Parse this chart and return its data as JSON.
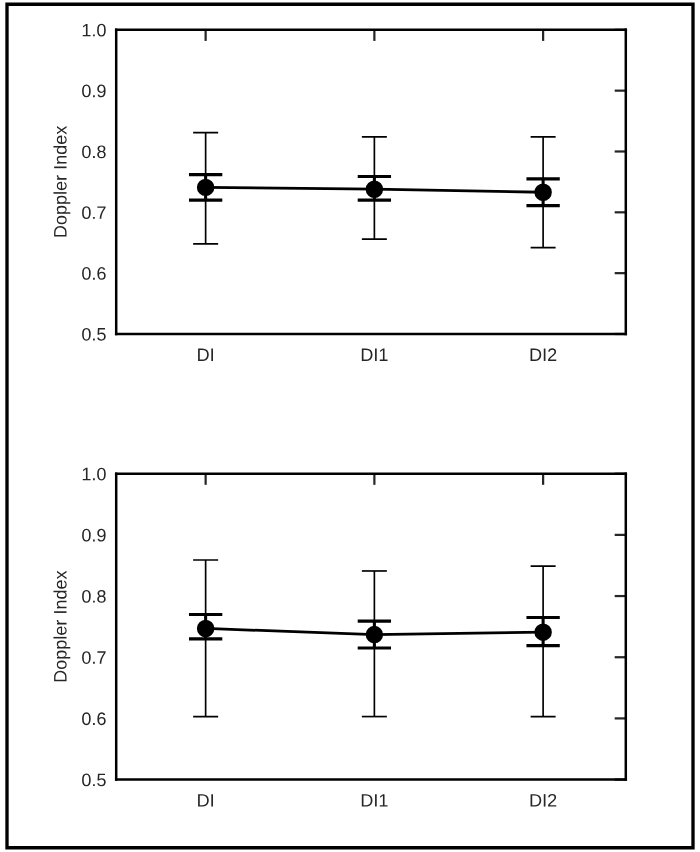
{
  "chart_data": [
    {
      "type": "line",
      "ylabel": "Doppler Index",
      "categories": [
        "DI",
        "DI1",
        "DI2"
      ],
      "ylim": [
        0.5,
        1.0
      ],
      "yticks": [
        {
          "value": 0.5,
          "label": "0.5"
        },
        {
          "value": 0.6,
          "label": "0.6"
        },
        {
          "value": 0.7,
          "label": "0.7"
        },
        {
          "value": 0.8,
          "label": "0.8"
        },
        {
          "value": 0.9,
          "label": "0.9"
        },
        {
          "value": 1.0,
          "label": "1.0"
        }
      ],
      "grid": false,
      "legend": false,
      "series": [
        {
          "type": "scatter",
          "color": "#000000",
          "marker": "circle",
          "values": [
            0.741,
            0.738,
            0.733
          ],
          "errors": [
            [
              0.648,
              0.831
            ],
            [
              0.656,
              0.824
            ],
            [
              0.642,
              0.824
            ]
          ]
        },
        {
          "type": "line",
          "color": "#000000",
          "marker": "none",
          "line_style": "solid",
          "values": [
            0.741,
            0.738,
            0.733
          ],
          "errors": [
            [
              0.72,
              0.762
            ],
            [
              0.72,
              0.759
            ],
            [
              0.711,
              0.755
            ]
          ]
        }
      ]
    },
    {
      "type": "line",
      "ylabel": "Doppler Index",
      "categories": [
        "DI",
        "DI1",
        "DI2"
      ],
      "ylim": [
        0.5,
        1.0
      ],
      "yticks": [
        {
          "value": 0.5,
          "label": "0.5"
        },
        {
          "value": 0.6,
          "label": "0.6"
        },
        {
          "value": 0.7,
          "label": "0.7"
        },
        {
          "value": 0.8,
          "label": "0.8"
        },
        {
          "value": 0.9,
          "label": "0.9"
        },
        {
          "value": 1.0,
          "label": "1.0"
        }
      ],
      "grid": false,
      "legend": false,
      "series": [
        {
          "type": "scatter",
          "color": "#000000",
          "marker": "circle",
          "values": [
            0.747,
            0.737,
            0.741
          ],
          "errors": [
            [
              0.603,
              0.859
            ],
            [
              0.603,
              0.841
            ],
            [
              0.603,
              0.849
            ]
          ]
        },
        {
          "type": "line",
          "color": "#000000",
          "marker": "none",
          "line_style": "solid",
          "values": [
            0.747,
            0.737,
            0.741
          ],
          "errors": [
            [
              0.73,
              0.77
            ],
            [
              0.715,
              0.759
            ],
            [
              0.719,
              0.765
            ]
          ]
        }
      ]
    }
  ]
}
